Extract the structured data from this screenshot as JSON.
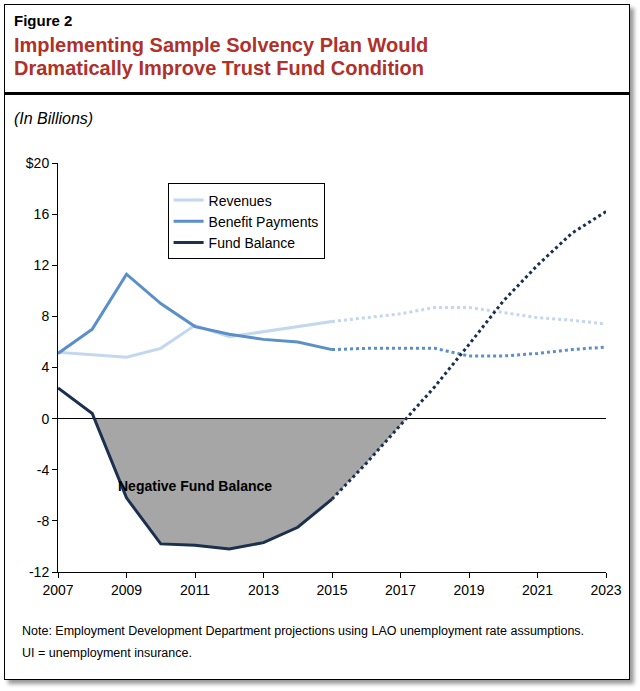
{
  "header": {
    "figure": "Figure 2",
    "title": "Implementing Sample Solvency Plan Would Dramatically Improve Trust Fund Condition",
    "units": "(In Billions)"
  },
  "chart_data": {
    "type": "line",
    "x": [
      2007,
      2008,
      2009,
      2010,
      2011,
      2012,
      2013,
      2014,
      2015,
      2016,
      2017,
      2018,
      2019,
      2020,
      2021,
      2022,
      2023
    ],
    "series": [
      {
        "name": "Revenues",
        "color": "#c3d7ee",
        "line_style": "solid",
        "values": [
          5.2,
          5.0,
          4.8,
          5.5,
          7.3,
          6.4,
          6.8,
          7.2,
          7.6,
          null,
          null,
          null,
          null,
          null,
          null,
          null,
          null
        ]
      },
      {
        "name": "Benefit Payments",
        "color": "#5b8fc9",
        "line_style": "solid",
        "values": [
          5.1,
          7.0,
          11.3,
          9.0,
          7.2,
          6.6,
          6.2,
          6.0,
          5.4,
          null,
          null,
          null,
          null,
          null,
          null,
          null,
          null
        ]
      },
      {
        "name": "Fund Balance",
        "color": "#1b2f4e",
        "line_style": "solid",
        "values": [
          2.4,
          0.4,
          -6.2,
          -9.8,
          -9.9,
          -10.2,
          -9.7,
          -8.5,
          -6.3,
          null,
          null,
          null,
          null,
          null,
          null,
          null,
          null
        ]
      },
      {
        "name": "Revenues",
        "color": "#c3d7ee",
        "line_style": "dotted",
        "values": [
          null,
          null,
          null,
          null,
          null,
          null,
          null,
          null,
          7.6,
          7.9,
          8.2,
          8.7,
          8.7,
          8.3,
          7.9,
          7.7,
          7.4
        ]
      },
      {
        "name": "Benefit Payments",
        "color": "#5b8fc9",
        "line_style": "dotted",
        "values": [
          null,
          null,
          null,
          null,
          null,
          null,
          null,
          null,
          5.4,
          5.5,
          5.5,
          5.5,
          4.9,
          4.9,
          5.1,
          5.4,
          5.6
        ]
      },
      {
        "name": "Fund Balance",
        "color": "#1b2f4e",
        "line_style": "dotted",
        "values": [
          null,
          null,
          null,
          null,
          null,
          null,
          null,
          null,
          -6.3,
          -3.5,
          -0.5,
          2.5,
          5.8,
          9.2,
          12.0,
          14.5,
          16.2
        ]
      }
    ],
    "xlim": [
      2007,
      2023
    ],
    "xticks": [
      2007,
      2009,
      2011,
      2013,
      2015,
      2017,
      2019,
      2021,
      2023
    ],
    "ylim": [
      -12,
      20
    ],
    "yticks": [
      -12,
      -8,
      -4,
      0,
      4,
      8,
      12,
      16,
      {
        "value": 20,
        "label": "$20"
      }
    ],
    "grid": false,
    "legend": "upper left",
    "annotations": [
      {
        "text": "Negative Fund Balance",
        "x": 2011,
        "y": -5.3
      }
    ]
  },
  "notes": [
    "Note: Employment Development Department projections using LAO unemployment rate assumptions.",
    "UI = unemployment insurance."
  ]
}
